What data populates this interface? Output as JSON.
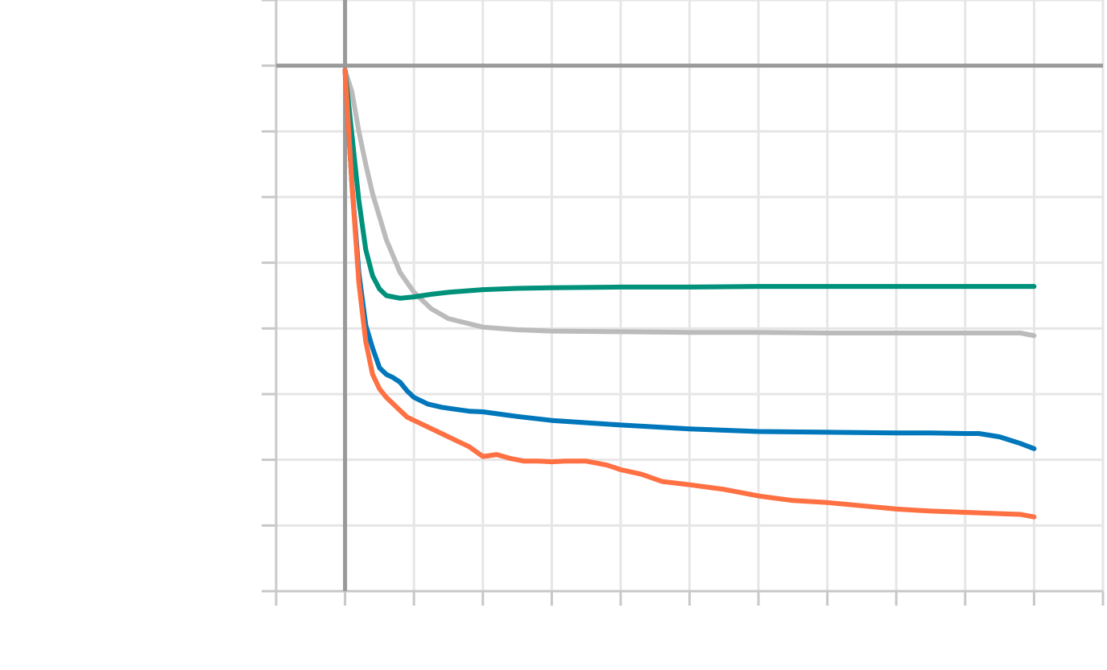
{
  "chart_data": {
    "type": "line",
    "title": "",
    "xlabel": "",
    "ylabel": "",
    "xlim": [
      -1,
      11
    ],
    "ylim": [
      0,
      9
    ],
    "x_ticks": [
      -1,
      0,
      1,
      2,
      3,
      4,
      5,
      6,
      7,
      8,
      9,
      10,
      11
    ],
    "y_ticks": [
      0,
      1,
      2,
      3,
      4,
      5,
      6,
      7,
      8,
      9
    ],
    "zero_lines": {
      "x": 0,
      "y": 8
    },
    "grid": true,
    "legend": "none",
    "series": [
      {
        "color": "#bbbbbb",
        "x": [
          0,
          0.1,
          0.2,
          0.3,
          0.4,
          0.5,
          0.6,
          0.8,
          1.0,
          1.25,
          1.5,
          2.0,
          2.5,
          3,
          4,
          5,
          6,
          7,
          8,
          9,
          9.8,
          10
        ],
        "y": [
          7.93,
          7.6,
          7.0,
          6.5,
          6.05,
          5.7,
          5.35,
          4.85,
          4.55,
          4.3,
          4.15,
          4.02,
          3.98,
          3.96,
          3.95,
          3.94,
          3.94,
          3.93,
          3.93,
          3.93,
          3.93,
          3.89
        ]
      },
      {
        "color": "#00917a",
        "x": [
          0,
          0.1,
          0.2,
          0.3,
          0.4,
          0.5,
          0.6,
          0.8,
          1.0,
          1.25,
          1.5,
          2.0,
          2.5,
          3,
          4,
          5,
          6,
          7,
          8,
          9,
          10
        ],
        "y": [
          7.93,
          6.95,
          5.95,
          5.2,
          4.8,
          4.6,
          4.5,
          4.46,
          4.48,
          4.52,
          4.55,
          4.59,
          4.61,
          4.62,
          4.63,
          4.63,
          4.64,
          4.64,
          4.64,
          4.64,
          4.64
        ]
      },
      {
        "color": "#0077bb",
        "x": [
          0,
          0.1,
          0.2,
          0.3,
          0.4,
          0.5,
          0.6,
          0.7,
          0.8,
          0.9,
          1.0,
          1.2,
          1.4,
          1.6,
          1.8,
          2.0,
          2.5,
          3,
          4,
          5,
          6,
          7,
          8,
          8.5,
          9,
          9.2,
          9.5,
          9.8,
          10
        ],
        "y": [
          7.93,
          6.2,
          4.85,
          4.05,
          3.7,
          3.4,
          3.3,
          3.25,
          3.18,
          3.05,
          2.95,
          2.85,
          2.8,
          2.77,
          2.74,
          2.73,
          2.66,
          2.6,
          2.53,
          2.47,
          2.43,
          2.42,
          2.41,
          2.41,
          2.4,
          2.4,
          2.35,
          2.25,
          2.17
        ]
      },
      {
        "color": "#ff7043",
        "x": [
          0,
          0.1,
          0.2,
          0.3,
          0.4,
          0.5,
          0.6,
          0.7,
          0.8,
          0.9,
          1.0,
          1.2,
          1.4,
          1.6,
          1.8,
          2.0,
          2.2,
          2.4,
          2.6,
          2.8,
          3.0,
          3.2,
          3.5,
          3.8,
          4.0,
          4.3,
          4.6,
          5.0,
          5.5,
          6.0,
          6.5,
          7.0,
          7.5,
          8.0,
          8.5,
          9.0,
          9.5,
          9.8,
          10.0
        ],
        "y": [
          7.93,
          6.2,
          4.7,
          3.8,
          3.3,
          3.08,
          2.95,
          2.85,
          2.75,
          2.65,
          2.6,
          2.5,
          2.4,
          2.3,
          2.2,
          2.05,
          2.08,
          2.02,
          1.98,
          1.98,
          1.97,
          1.98,
          1.98,
          1.92,
          1.85,
          1.78,
          1.67,
          1.62,
          1.55,
          1.45,
          1.38,
          1.35,
          1.3,
          1.25,
          1.22,
          1.2,
          1.18,
          1.17,
          1.13
        ]
      }
    ]
  }
}
